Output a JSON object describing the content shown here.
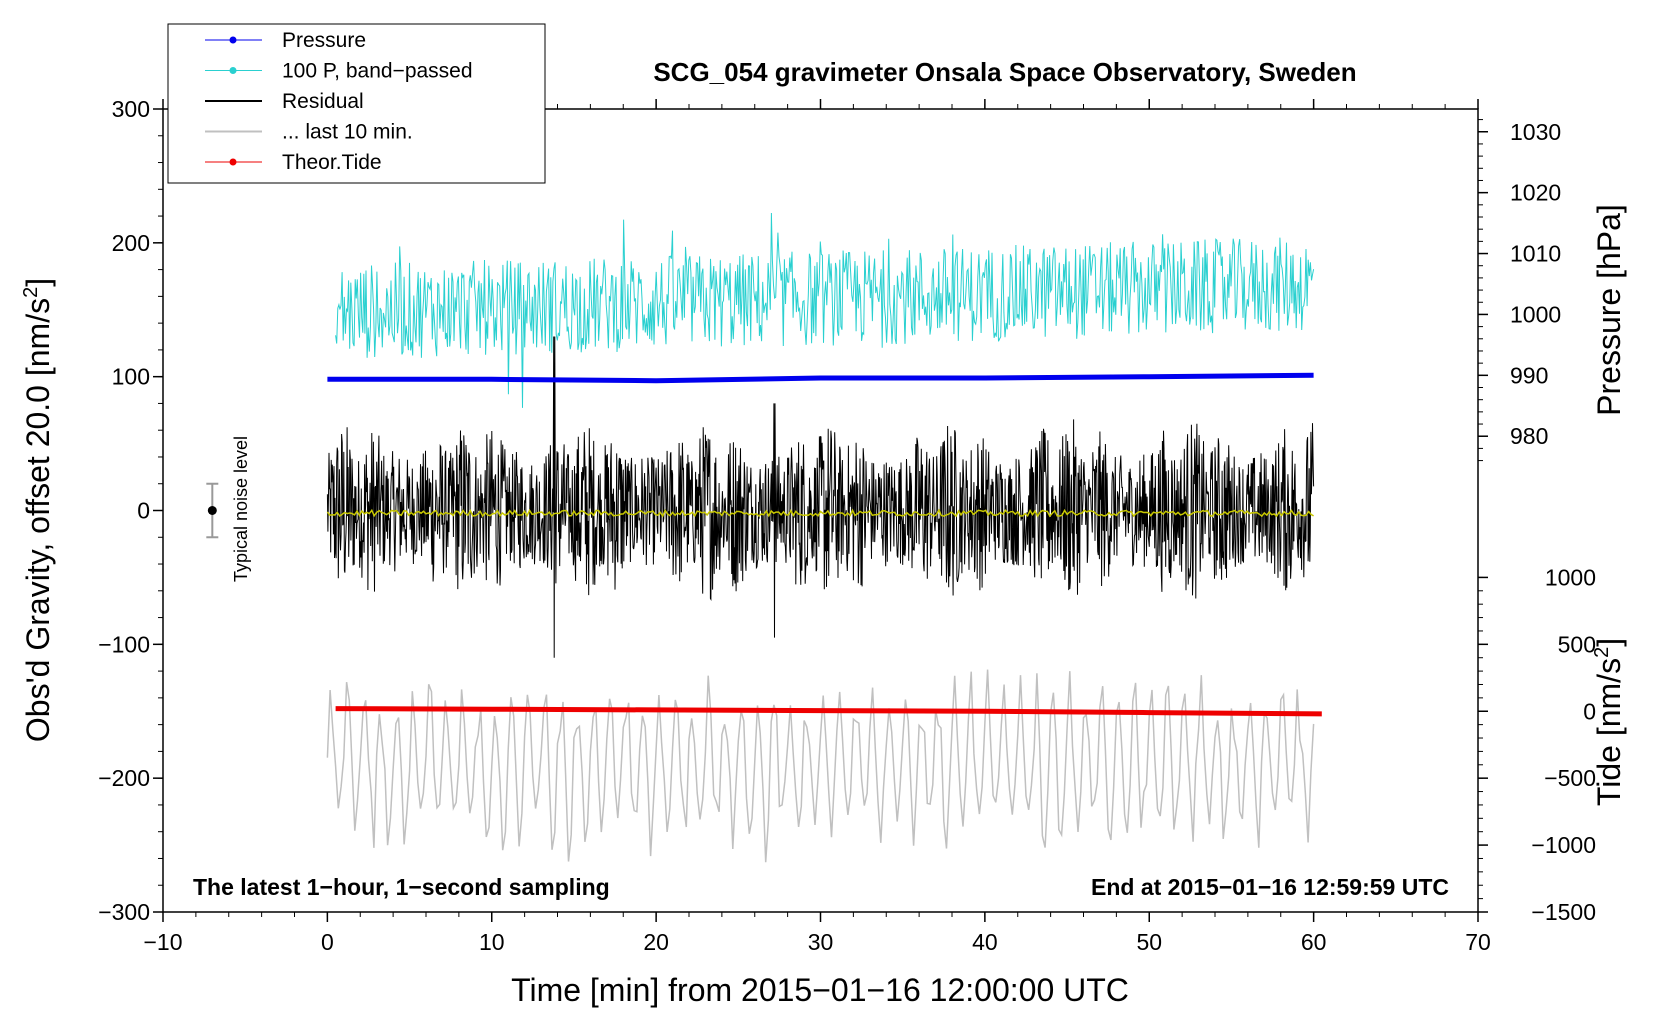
{
  "chart_data": {
    "type": "line",
    "title": "SCG_054 gravimeter Onsala Space Observatory, Sweden",
    "xlabel": "Time [min] from 2015−01−16 12:00:00 UTC",
    "ylabel_main": "Obs'd Gravity, offset 20.0 [nm/s",
    "ylabel_main_sup": "2",
    "ylabel_main_end": "]",
    "ylabel_pressure": "Pressure [hPa]",
    "ylabel_tide": "Tide [nm/s",
    "ylabel_tide_sup": "2",
    "ylabel_tide_end": "]",
    "xlim": [
      -10,
      70
    ],
    "ylim": [
      -300,
      300
    ],
    "x_ticks": [
      "−10",
      "0",
      "10",
      "20",
      "30",
      "40",
      "50",
      "60",
      "70"
    ],
    "x_tick_values": [
      -10,
      0,
      10,
      20,
      30,
      40,
      50,
      60,
      70
    ],
    "y_ticks": [
      "300",
      "200",
      "100",
      "0",
      "−100",
      "−200",
      "−300"
    ],
    "y_tick_values": [
      300,
      200,
      100,
      0,
      -100,
      -200,
      -300
    ],
    "pressure_ticks": [
      "1030",
      "1020",
      "1010",
      "1000",
      "990",
      "980"
    ],
    "pressure_tick_values": [
      1030,
      1020,
      1010,
      1000,
      990,
      980
    ],
    "pressure_map": {
      "hpa_a": 990,
      "y_a": 101,
      "hpa_b": 1030,
      "y_b": 283
    },
    "tide_ticks": [
      "1000",
      "500",
      "0",
      "−500",
      "−1000",
      "−1500"
    ],
    "tide_tick_values": [
      1000,
      500,
      0,
      -500,
      -1000,
      -1500
    ],
    "tide_map": {
      "tide_a": 1000,
      "y_a": -50,
      "tide_b": -1500,
      "y_b": -300
    },
    "annotation_left": "The latest 1−hour, 1−second sampling",
    "annotation_right": "End at 2015−01−16 12:59:59 UTC",
    "noise_label": "Typical noise level",
    "noise_bar": {
      "x": -7,
      "center": 0,
      "half_range": 20
    },
    "legend": [
      {
        "label": "Pressure",
        "color": "#0000ee",
        "marker": true
      },
      {
        "label": "100 P, band−passed",
        "color": "#2ad0d0",
        "marker": true
      },
      {
        "label": "Residual",
        "color": "#000000",
        "marker": false
      },
      {
        "label": "... last 10 min.",
        "color": "#c0c0c0",
        "marker": false
      },
      {
        "label": "Theor.Tide",
        "color": "#ee0000",
        "marker": true
      }
    ],
    "series": [
      {
        "name": "Pressure",
        "color": "#0000ee",
        "unit": "gravity-axis",
        "x": [
          0,
          10,
          20,
          30,
          40,
          50,
          60
        ],
        "values": [
          98,
          98,
          97,
          99,
          99,
          100,
          101
        ]
      },
      {
        "name": "100 P, band−passed",
        "color": "#2ad0d0",
        "center": 148,
        "amplitude_typical": 30,
        "x_range": [
          0.5,
          60
        ]
      },
      {
        "name": "Residual",
        "color": "#000000",
        "center": 0,
        "amplitude_typical": 40,
        "x_range": [
          0,
          60
        ]
      },
      {
        "name": "Residual (smoothed)",
        "color": "#c8c800",
        "center": -2,
        "x_range": [
          0,
          60
        ]
      },
      {
        "name": "... last 10 min.",
        "color": "#c0c0c0",
        "center": -190,
        "amplitude_typical": 35,
        "x_range": [
          0,
          60
        ]
      },
      {
        "name": "Theor.Tide",
        "color": "#ee0000",
        "unit": "gravity-axis",
        "x": [
          0.5,
          10,
          20,
          30,
          40,
          50,
          60.5
        ],
        "values": [
          -148,
          -148.5,
          -149,
          -149.5,
          -150,
          -151,
          -152
        ]
      }
    ]
  }
}
